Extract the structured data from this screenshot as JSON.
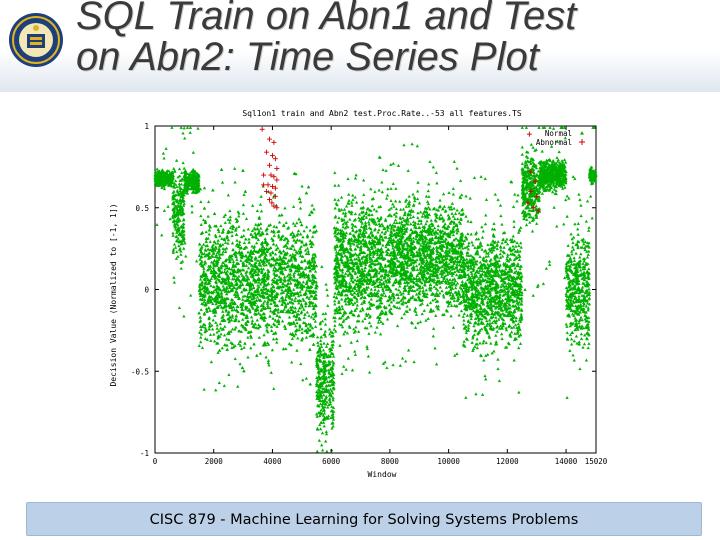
{
  "slide": {
    "title_line1": "SQL Train on Abn1 and Test",
    "title_line2": "on Abn2: Time Series Plot",
    "footer": "CISC 879 - Machine Learning for Solving Systems Problems"
  },
  "colors": {
    "normal": "#00b000",
    "abnormal": "#d00000",
    "footer_bg": "#bcd1e8",
    "seal_navy": "#1d3f7a",
    "seal_gold": "#e0b21f"
  },
  "chart_data": {
    "type": "scatter",
    "title": "Sql1on1 train and Abn2 test.Proc.Rate..-53 all features.TS",
    "xlabel": "Window",
    "ylabel": "Decision Value (Normalized to [-1, 1])",
    "xlim": [
      0,
      15020
    ],
    "ylim": [
      -1,
      1
    ],
    "xticks": [
      0,
      2000,
      4000,
      6000,
      8000,
      10000,
      12000,
      14000,
      15020
    ],
    "xtick_labels": [
      "0",
      "2000",
      "4000",
      "6000",
      "8000",
      "10000",
      "12000",
      "14000",
      "15020"
    ],
    "yticks": [
      -1,
      -0.5,
      0,
      0.5,
      1
    ],
    "ytick_labels": [
      "-1",
      "-0.5",
      "0",
      "0.5",
      "1"
    ],
    "legend_position": "top-right",
    "series": [
      {
        "name": "Normal",
        "marker": "triangle",
        "description_segments": [
          {
            "x": [
              0,
              600
            ],
            "center": 0.68,
            "spread": 0.04
          },
          {
            "x": [
              600,
              1000
            ],
            "center": 0.45,
            "spread": 0.25
          },
          {
            "x": [
              1000,
              1500
            ],
            "center": 0.66,
            "spread": 0.06
          },
          {
            "x": [
              1500,
              5500
            ],
            "center": 0.05,
            "spread": 0.35
          },
          {
            "x": [
              5500,
              6100
            ],
            "center": -0.55,
            "spread": 0.3
          },
          {
            "x": [
              6100,
              8000
            ],
            "center": 0.15,
            "spread": 0.35
          },
          {
            "x": [
              8000,
              10500
            ],
            "center": 0.2,
            "spread": 0.3
          },
          {
            "x": [
              10500,
              12500
            ],
            "center": 0.0,
            "spread": 0.3
          },
          {
            "x": [
              12500,
              13100
            ],
            "center": 0.62,
            "spread": 0.18
          },
          {
            "x": [
              13100,
              14000
            ],
            "center": 0.7,
            "spread": 0.08
          },
          {
            "x": [
              14000,
              14800
            ],
            "center": 0.0,
            "spread": 0.3
          },
          {
            "x": [
              14800,
              15020
            ],
            "center": 0.7,
            "spread": 0.04
          }
        ]
      },
      {
        "name": "Abnormal",
        "marker": "plus",
        "points": [
          [
            3650,
            0.98
          ],
          [
            3900,
            0.92
          ],
          [
            4050,
            0.9
          ],
          [
            3800,
            0.84
          ],
          [
            4000,
            0.82
          ],
          [
            4100,
            0.8
          ],
          [
            3900,
            0.76
          ],
          [
            4150,
            0.74
          ],
          [
            3700,
            0.7
          ],
          [
            3950,
            0.7
          ],
          [
            4050,
            0.69
          ],
          [
            4150,
            0.67
          ],
          [
            3700,
            0.64
          ],
          [
            3850,
            0.64
          ],
          [
            4000,
            0.63
          ],
          [
            4100,
            0.62
          ],
          [
            3800,
            0.6
          ],
          [
            3950,
            0.59
          ],
          [
            4100,
            0.57
          ],
          [
            3900,
            0.55
          ],
          [
            3980,
            0.53
          ],
          [
            4050,
            0.51
          ],
          [
            4150,
            0.5
          ],
          [
            12750,
            0.95
          ],
          [
            12800,
            0.72
          ],
          [
            12950,
            0.66
          ],
          [
            12800,
            0.6
          ],
          [
            13000,
            0.57
          ],
          [
            12700,
            0.53
          ],
          [
            12900,
            0.5
          ],
          [
            13050,
            0.48
          ]
        ]
      }
    ]
  }
}
